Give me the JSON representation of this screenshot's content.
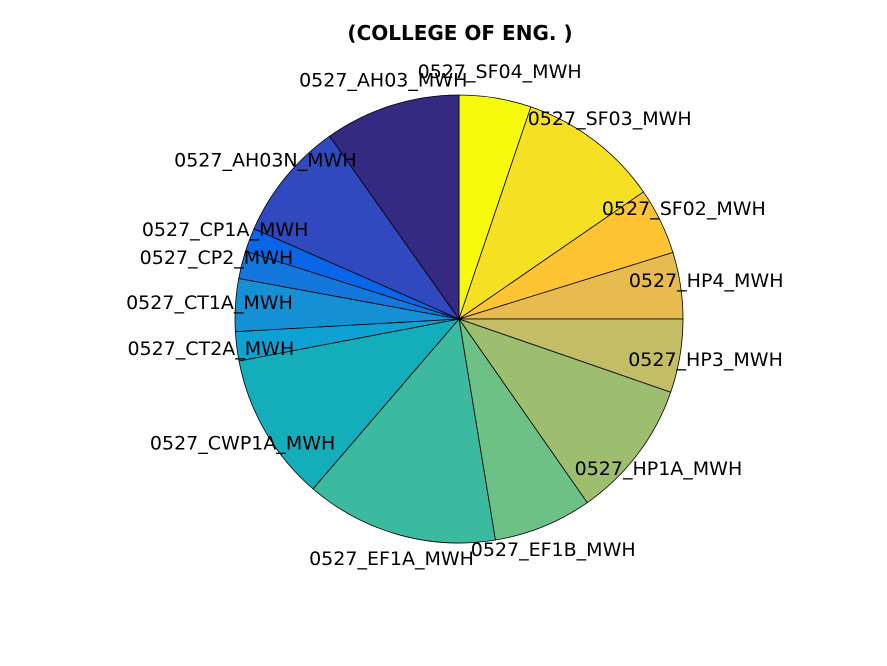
{
  "chart_data": {
    "type": "pie",
    "title": "(COLLEGE OF ENG. )",
    "start": "top",
    "direction": "clockwise",
    "slices": [
      {
        "label": "0527_SF04_MWH",
        "value": 5.2,
        "color": "#f8fa0d"
      },
      {
        "label": "0527_SF03_MWH",
        "value": 10.2,
        "color": "#f5e023"
      },
      {
        "label": "0527_SF02_MWH",
        "value": 4.8,
        "color": "#fec434"
      },
      {
        "label": "0527_HP4_MWH",
        "value": 4.8,
        "color": "#e8bb50"
      },
      {
        "label": "0527_HP3_MWH",
        "value": 5.3,
        "color": "#c3bd65"
      },
      {
        "label": "0527_HP1A_MWH",
        "value": 10.0,
        "color": "#9ebe6f"
      },
      {
        "label": "0527_EF1B_MWH",
        "value": 7.1,
        "color": "#6dc187"
      },
      {
        "label": "0527_EF1A_MWH",
        "value": 13.9,
        "color": "#3bba9f"
      },
      {
        "label": "0527_CWP1A_MWH",
        "value": 10.7,
        "color": "#14adba"
      },
      {
        "label": "0527_CT2A_MWH",
        "value": 2.1,
        "color": "#0ea1d3"
      },
      {
        "label": "0527_CT1A_MWH",
        "value": 3.8,
        "color": "#1690d5"
      },
      {
        "label": "0527_CP2_MWH",
        "value": 2.0,
        "color": "#1477db"
      },
      {
        "label": "0527_CP1A_MWH",
        "value": 1.7,
        "color": "#0966e8"
      },
      {
        "label": "0527_AH03N_MWH",
        "value": 8.6,
        "color": "#3149bf"
      },
      {
        "label": "0527_AH03_MWH",
        "value": 9.8,
        "color": "#352a82"
      }
    ]
  }
}
